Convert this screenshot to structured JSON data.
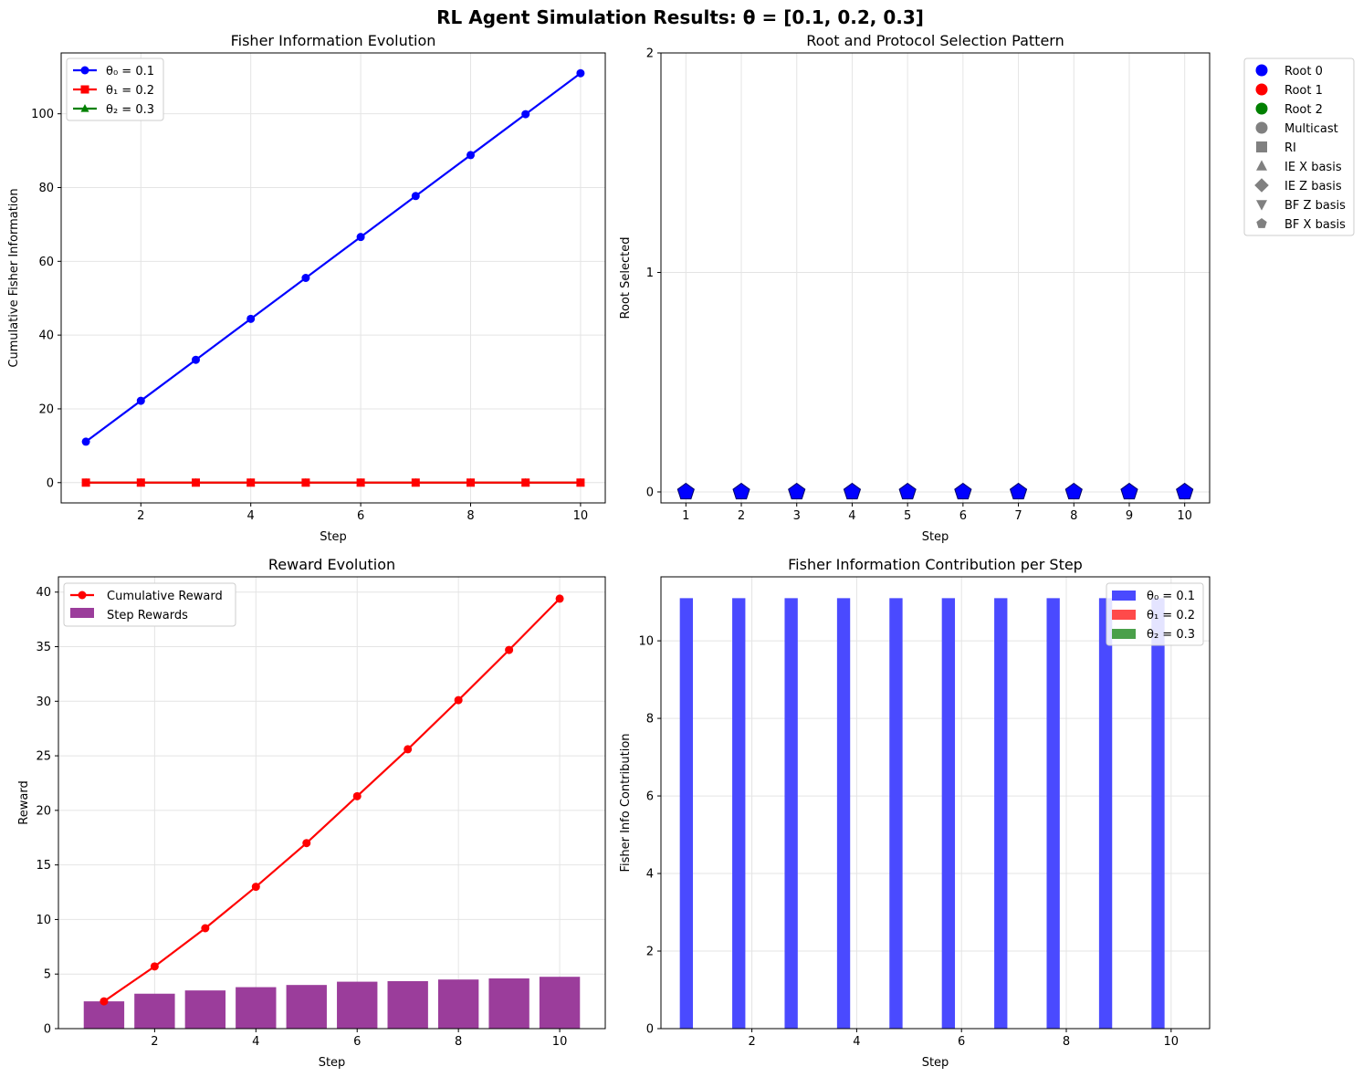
{
  "figure": {
    "suptitle": "RL Agent Simulation Results: θ = [0.1, 0.2, 0.3]"
  },
  "chart_data": [
    {
      "id": "fisher_evolution",
      "type": "line",
      "title": "Fisher Information Evolution",
      "xlabel": "Step",
      "ylabel": "Cumulative Fisher Information",
      "xlim": [
        0.55,
        10.45
      ],
      "ylim": [
        -5.5,
        116.5
      ],
      "xticks": [
        2,
        4,
        6,
        8,
        10
      ],
      "yticks": [
        0,
        20,
        40,
        60,
        80,
        100
      ],
      "grid": true,
      "legend_position": "upper-left",
      "x": [
        1,
        2,
        3,
        4,
        5,
        6,
        7,
        8,
        9,
        10
      ],
      "series": [
        {
          "name": "θ₀ = 0.1",
          "color": "#0000ff",
          "marker": "circle",
          "values": [
            11.1,
            22.2,
            33.3,
            44.4,
            55.5,
            66.6,
            77.7,
            88.8,
            99.9,
            111.0
          ]
        },
        {
          "name": "θ₁ = 0.2",
          "color": "#ff0000",
          "marker": "square",
          "values": [
            0,
            0,
            0,
            0,
            0,
            0,
            0,
            0,
            0,
            0
          ]
        },
        {
          "name": "θ₂ = 0.3",
          "color": "#008000",
          "marker": "triangle",
          "values": [
            0,
            0,
            0,
            0,
            0,
            0,
            0,
            0,
            0,
            0
          ]
        }
      ]
    },
    {
      "id": "root_selection",
      "type": "scatter",
      "title": "Root and Protocol Selection Pattern",
      "xlabel": "Step",
      "ylabel": "Root Selected",
      "xlim": [
        0.55,
        10.45
      ],
      "ylim": [
        -0.05,
        2
      ],
      "xticks": [
        1,
        2,
        3,
        4,
        5,
        6,
        7,
        8,
        9,
        10
      ],
      "yticks": [
        0,
        1,
        2
      ],
      "grid": true,
      "legend_position": "outside-right",
      "points": [
        {
          "x": 1,
          "y": 0,
          "color": "#0000ff",
          "marker": "pentagon"
        },
        {
          "x": 2,
          "y": 0,
          "color": "#0000ff",
          "marker": "pentagon"
        },
        {
          "x": 3,
          "y": 0,
          "color": "#0000ff",
          "marker": "pentagon"
        },
        {
          "x": 4,
          "y": 0,
          "color": "#0000ff",
          "marker": "pentagon"
        },
        {
          "x": 5,
          "y": 0,
          "color": "#0000ff",
          "marker": "pentagon"
        },
        {
          "x": 6,
          "y": 0,
          "color": "#0000ff",
          "marker": "pentagon"
        },
        {
          "x": 7,
          "y": 0,
          "color": "#0000ff",
          "marker": "pentagon"
        },
        {
          "x": 8,
          "y": 0,
          "color": "#0000ff",
          "marker": "pentagon"
        },
        {
          "x": 9,
          "y": 0,
          "color": "#0000ff",
          "marker": "pentagon"
        },
        {
          "x": 10,
          "y": 0,
          "color": "#0000ff",
          "marker": "pentagon"
        }
      ],
      "legend": [
        {
          "label": "Root 0",
          "color": "#0000ff",
          "marker": "circle"
        },
        {
          "label": "Root 1",
          "color": "#ff0000",
          "marker": "circle"
        },
        {
          "label": "Root 2",
          "color": "#008000",
          "marker": "circle"
        },
        {
          "label": "Multicast",
          "color": "#808080",
          "marker": "circle"
        },
        {
          "label": "RI",
          "color": "#808080",
          "marker": "square"
        },
        {
          "label": "IE X basis",
          "color": "#808080",
          "marker": "triangle"
        },
        {
          "label": "IE Z basis",
          "color": "#808080",
          "marker": "diamond"
        },
        {
          "label": "BF Z basis",
          "color": "#808080",
          "marker": "triangle-down"
        },
        {
          "label": "BF X basis",
          "color": "#808080",
          "marker": "pentagon"
        }
      ]
    },
    {
      "id": "reward_evolution",
      "type": "bar",
      "title": "Reward Evolution",
      "xlabel": "Step",
      "ylabel": "Reward",
      "xlim": [
        0.1,
        10.9
      ],
      "ylim": [
        0,
        41.4
      ],
      "xticks": [
        2,
        4,
        6,
        8,
        10
      ],
      "yticks": [
        0,
        5,
        10,
        15,
        20,
        25,
        30,
        35,
        40
      ],
      "grid": true,
      "legend_position": "upper-left",
      "x": [
        1,
        2,
        3,
        4,
        5,
        6,
        7,
        8,
        9,
        10
      ],
      "series": [
        {
          "name": "Cumulative Reward",
          "kind": "line",
          "color": "#ff0000",
          "values": [
            2.5,
            5.7,
            9.2,
            13.0,
            17.0,
            21.3,
            25.6,
            30.1,
            34.7,
            39.4
          ]
        },
        {
          "name": "Step Rewards",
          "kind": "bar",
          "color": "#9b3d9b",
          "values": [
            2.5,
            3.2,
            3.5,
            3.8,
            4.0,
            4.3,
            4.35,
            4.5,
            4.6,
            4.75
          ]
        }
      ]
    },
    {
      "id": "fisher_contribution",
      "type": "bar",
      "title": "Fisher Information Contribution per Step",
      "xlabel": "Step",
      "ylabel": "Fisher Info Contribution",
      "xlim": [
        0.265,
        10.735
      ],
      "ylim": [
        0,
        11.65
      ],
      "xticks": [
        2,
        4,
        6,
        8,
        10
      ],
      "yticks": [
        0,
        2,
        4,
        6,
        8,
        10
      ],
      "grid": true,
      "legend_position": "upper-right",
      "x": [
        1,
        2,
        3,
        4,
        5,
        6,
        7,
        8,
        9,
        10
      ],
      "series": [
        {
          "name": "θ₀ = 0.1",
          "color": "#4a4aff",
          "offset": -0.25,
          "values": [
            11.1,
            11.1,
            11.1,
            11.1,
            11.1,
            11.1,
            11.1,
            11.1,
            11.1,
            11.1
          ]
        },
        {
          "name": "θ₁ = 0.2",
          "color": "#ff4a4a",
          "offset": 0,
          "values": [
            0,
            0,
            0,
            0,
            0,
            0,
            0,
            0,
            0,
            0
          ]
        },
        {
          "name": "θ₂ = 0.3",
          "color": "#4aa04a",
          "offset": 0.25,
          "values": [
            0,
            0,
            0,
            0,
            0,
            0,
            0,
            0,
            0,
            0
          ]
        }
      ]
    }
  ]
}
